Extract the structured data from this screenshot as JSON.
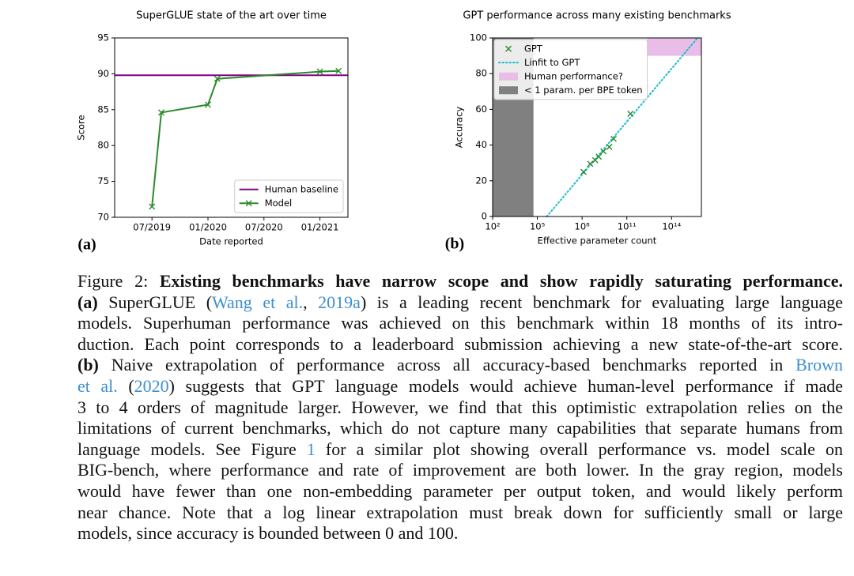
{
  "chart_data": [
    {
      "type": "line",
      "title": "SuperGLUE state of the art over time",
      "xlabel": "Date reported",
      "ylabel": "Score",
      "panel_label": "(a)",
      "x": [
        "2019-07",
        "2019-08",
        "2020-01",
        "2020-02",
        "2021-01",
        "2021-03"
      ],
      "xlim": [
        "2019-03",
        "2021-04"
      ],
      "xticks": [
        {
          "value": "2019-07",
          "label": "07/2019"
        },
        {
          "value": "2020-01",
          "label": "01/2020"
        },
        {
          "value": "2020-07",
          "label": "07/2020"
        },
        {
          "value": "2021-01",
          "label": "01/2021"
        }
      ],
      "ylim": [
        70,
        95
      ],
      "yticks": [
        70,
        75,
        80,
        85,
        90,
        95
      ],
      "hlines": [
        {
          "name": "Human baseline",
          "color": "#800080",
          "value": 89.8
        }
      ],
      "series": [
        {
          "name": "Model",
          "color": "#2a8a2a",
          "marker": "x",
          "values": [
            71.5,
            84.6,
            85.7,
            89.3,
            90.3,
            90.4
          ]
        }
      ],
      "legend": "lower right"
    },
    {
      "type": "scatter",
      "title": "GPT performance across many existing benchmarks",
      "xlabel": "Effective parameter count",
      "ylabel": "Accuracy",
      "panel_label": "(b)",
      "xscale": "log",
      "xlim": [
        100,
        1e+16
      ],
      "xticks": [
        {
          "value": 100,
          "label": "10²"
        },
        {
          "value": 100000,
          "label": "10⁵"
        },
        {
          "value": 100000000,
          "label": "10⁸"
        },
        {
          "value": 100000000000,
          "label": "10¹¹"
        },
        {
          "value": 100000000000000,
          "label": "10¹⁴"
        }
      ],
      "ylim": [
        0,
        100
      ],
      "yticks": [
        0,
        20,
        40,
        60,
        80,
        100
      ],
      "series": [
        {
          "name": "GPT",
          "color": "#2a8a2a",
          "marker": "x",
          "x": [
            125000000,
            350000000,
            760000000,
            1300000000,
            2700000000,
            6700000000,
            13000000000,
            175000000000
          ],
          "values": [
            25,
            29.5,
            31.5,
            33.5,
            36.5,
            39,
            43.5,
            57.5
          ]
        }
      ],
      "fit": {
        "name": "Linfit to GPT",
        "color": "#17becf",
        "x": [
          430000,
          5500000000000000
        ],
        "values": [
          0,
          100
        ]
      },
      "spans": [
        {
          "name": "Human performance?",
          "color": "#e8bde8",
          "xlim": [
            2300000000000,
            1e+16
          ],
          "ylim": [
            90,
            100
          ]
        },
        {
          "name": "< 1 param. per BPE token",
          "color": "#808080",
          "xlim": [
            100,
            55000
          ],
          "ylim": [
            0,
            100
          ]
        }
      ],
      "legend": "upper left"
    }
  ],
  "caption": {
    "lines": [
      [
        {
          "text": "Figure 2: "
        },
        {
          "text": "Existing benchmarks have narrow scope and show rapidly saturating performance.",
          "style": "bold"
        }
      ],
      [
        {
          "text": "(a)",
          "style": "bold"
        },
        {
          "text": " SuperGLUE ("
        },
        {
          "text": "Wang et al.",
          "style": "link"
        },
        {
          "text": ", "
        },
        {
          "text": "2019a",
          "style": "link"
        },
        {
          "text": ") is a leading recent benchmark for evaluating large language"
        }
      ],
      [
        {
          "text": "models. Superhuman performance was achieved on this benchmark within 18 months of its intro-"
        }
      ],
      [
        {
          "text": "duction. Each point corresponds to a leaderboard submission achieving a new state-of-the-art score."
        }
      ],
      [
        {
          "text": "(b)",
          "style": "bold"
        },
        {
          "text": " Naive extrapolation of performance across all accuracy-based benchmarks reported in "
        },
        {
          "text": "Brown",
          "style": "link"
        }
      ],
      [
        {
          "text": "et al.",
          "style": "link"
        },
        {
          "text": " ("
        },
        {
          "text": "2020",
          "style": "link"
        },
        {
          "text": ") suggests that GPT language models would achieve human-level performance if made"
        }
      ],
      [
        {
          "text": "3 to 4 orders of magnitude larger. However, we find that this optimistic extrapolation relies on the"
        }
      ],
      [
        {
          "text": "limitations of current benchmarks, which do not capture many capabilities that separate humans from"
        }
      ],
      [
        {
          "text": "language models. See Figure "
        },
        {
          "text": "1",
          "style": "link"
        },
        {
          "text": " for a similar plot showing overall performance vs. model scale on"
        }
      ],
      [
        {
          "text": "BIG-bench, where performance and rate of improvement are both lower. In the gray region, models"
        }
      ],
      [
        {
          "text": "would have fewer than one non-embedding parameter per output token, and would likely perform"
        }
      ],
      [
        {
          "text": "near chance. Note that a log linear extrapolation must break down for sufficiently small or large"
        }
      ],
      [
        {
          "text": "models, since accuracy is bounded between 0 and 100."
        }
      ]
    ]
  }
}
